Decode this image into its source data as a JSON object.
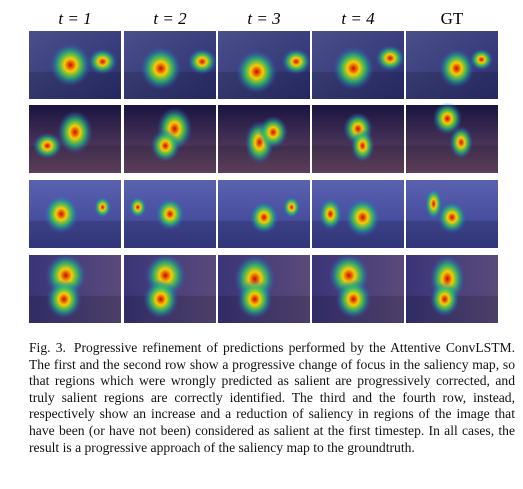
{
  "columns": [
    "t = 1",
    "t = 2",
    "t = 3",
    "t = 4",
    "GT"
  ],
  "caption": {
    "label": "Fig. 3.",
    "text": "Progressive refinement of predictions performed by the Attentive ConvLSTM. The first and the second row show a progressive change of focus in the saliency map, so that regions which were wrongly predicted as salient are progressively corrected, and truly salient regions are correctly identified. The third and the fourth row, instead, respectively show an increase and a reduction of saliency in regions of the image that have been (or have not been) considered as salient at the first timestep. In all cases, the result is a progressive approach of the saliency map to the groundtruth."
  }
}
